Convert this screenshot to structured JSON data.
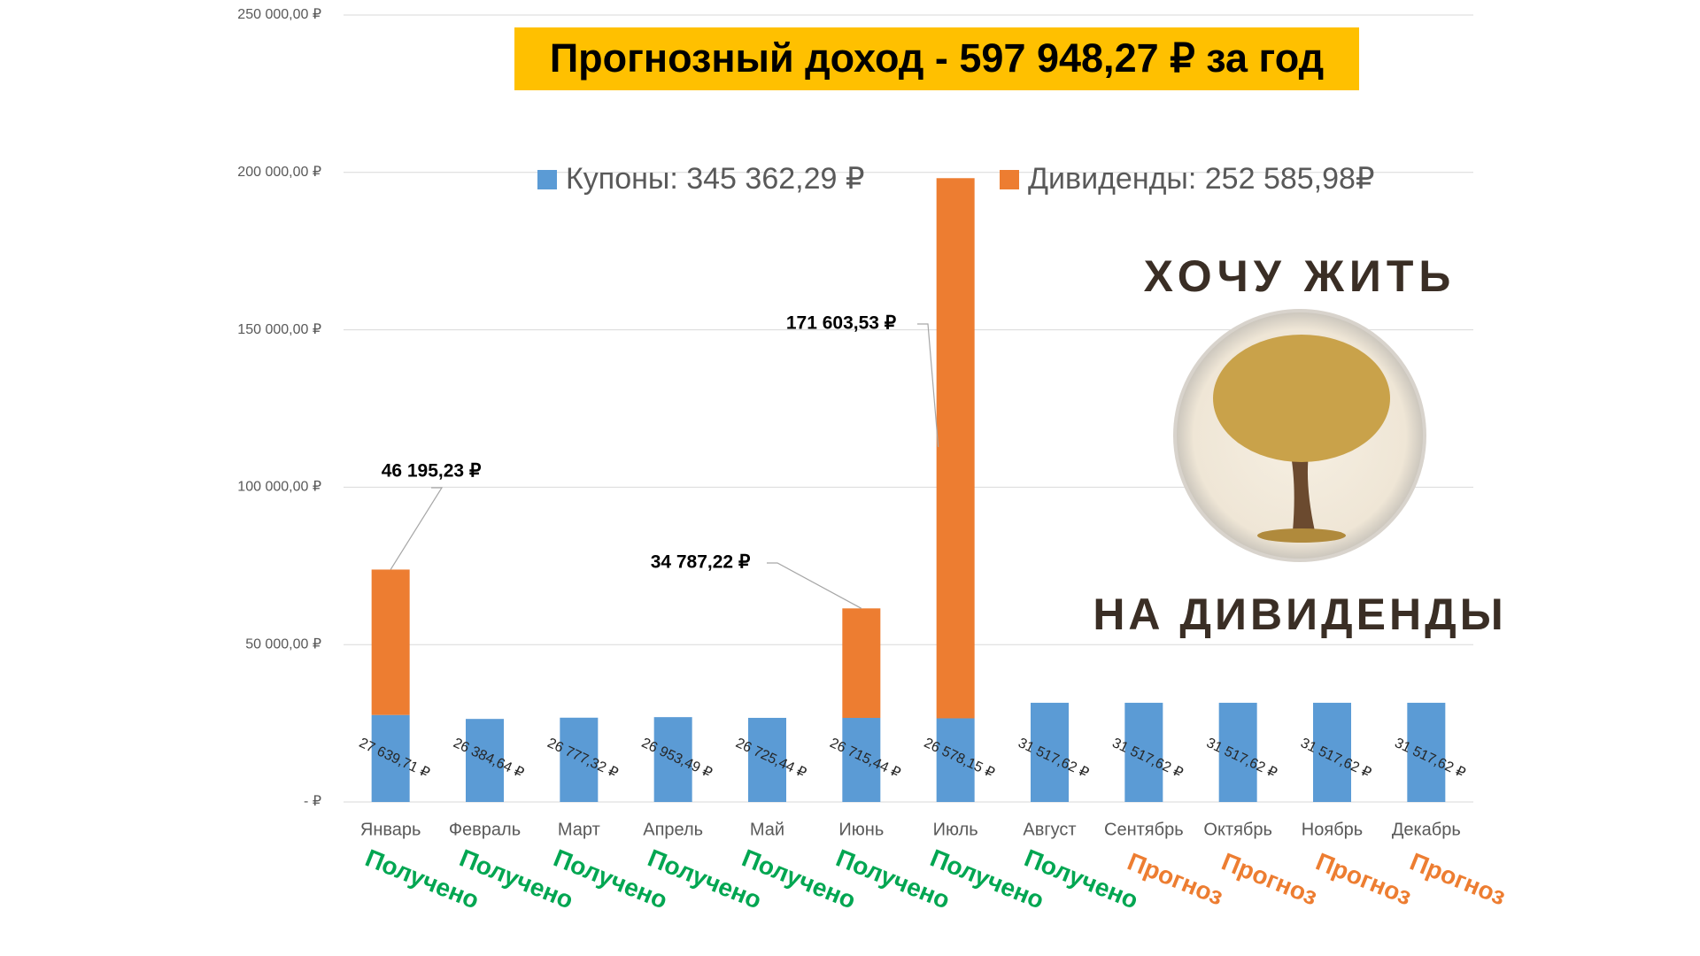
{
  "chart_data": {
    "type": "stacked_bar",
    "title": "Прогнозный доход - 597 948,27 ₽ за год",
    "categories": [
      "Январь",
      "Февраль",
      "Март",
      "Апрель",
      "Май",
      "Июнь",
      "Июль",
      "Август",
      "Сентябрь",
      "Октябрь",
      "Ноябрь",
      "Декабрь"
    ],
    "series": [
      {
        "name": "Купоны: 345 362,29 ₽",
        "color": "#5b9bd5",
        "values": [
          27639.71,
          26384.64,
          26777.32,
          26953.49,
          26725.44,
          26715.44,
          26578.15,
          31517.62,
          31517.62,
          31517.62,
          31517.62,
          31517.62
        ],
        "value_labels": [
          "27 639,71 ₽",
          "26 384,64 ₽",
          "26 777,32 ₽",
          "26 953,49 ₽",
          "26 725,44 ₽",
          "26 715,44 ₽",
          "26 578,15 ₽",
          "31 517,62 ₽",
          "31 517,62 ₽",
          "31 517,62 ₽",
          "31 517,62 ₽",
          "31 517,62 ₽"
        ]
      },
      {
        "name": "Дивиденды: 252 585,98₽",
        "color": "#ed7d31",
        "values": [
          46195.23,
          null,
          null,
          null,
          null,
          34787.22,
          171603.53,
          null,
          null,
          null,
          null,
          null
        ],
        "value_labels": [
          "46 195,23 ₽",
          null,
          null,
          null,
          null,
          "34 787,22 ₽",
          "171 603,53 ₽",
          null,
          null,
          null,
          null,
          null
        ]
      }
    ],
    "ylim": [
      0,
      250000
    ],
    "yticks": [
      {
        "value": 0,
        "label": "-  ₽"
      },
      {
        "value": 50000,
        "label": "50 000,00 ₽"
      },
      {
        "value": 100000,
        "label": "100 000,00 ₽"
      },
      {
        "value": 150000,
        "label": "150 000,00 ₽"
      },
      {
        "value": 200000,
        "label": "200 000,00 ₽"
      },
      {
        "value": 250000,
        "label": "250 000,00 ₽"
      }
    ],
    "grid": true,
    "annotations": [
      {
        "text": "Получено",
        "color": "#00a651"
      },
      {
        "text": "Получено",
        "color": "#00a651"
      },
      {
        "text": "Получено",
        "color": "#00a651"
      },
      {
        "text": "Получено",
        "color": "#00a651"
      },
      {
        "text": "Получено",
        "color": "#00a651"
      },
      {
        "text": "Получено",
        "color": "#00a651"
      },
      {
        "text": "Получено",
        "color": "#00a651"
      },
      {
        "text": "Получено",
        "color": "#00a651"
      },
      {
        "text": "Прогноз",
        "color": "#ed7d31"
      },
      {
        "text": "Прогноз",
        "color": "#ed7d31"
      },
      {
        "text": "Прогноз",
        "color": "#ed7d31"
      },
      {
        "text": "Прогноз",
        "color": "#ed7d31"
      }
    ]
  },
  "logo": {
    "top": "ХОЧУ ЖИТЬ",
    "bottom": "НА ДИВИДЕНДЫ"
  }
}
